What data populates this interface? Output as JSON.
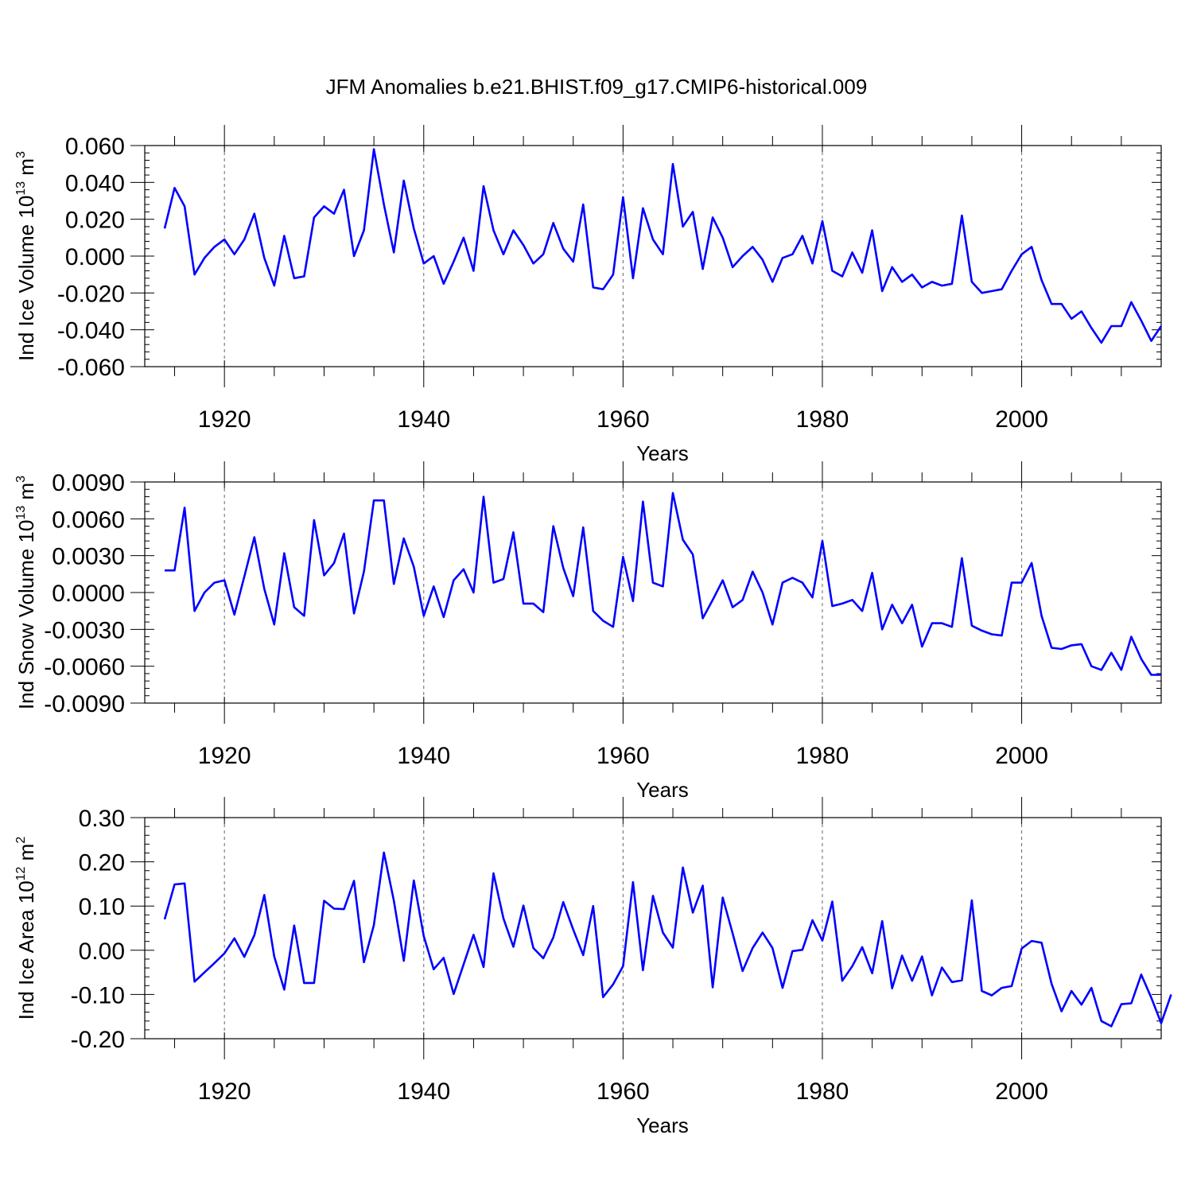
{
  "figure": {
    "title": "JFM Anomalies b.e21.BHIST.f09_g17.CMIP6-historical.009"
  },
  "colors": {
    "line": "#0000ff",
    "axis": "#000000",
    "grid": "#666666"
  },
  "chart_data": [
    {
      "type": "line",
      "id": "ice-volume",
      "xlabel": "Years",
      "ylabel_base": "Ind Ice Volume 10",
      "ylabel_exp": "13",
      "ylabel_unit": " m",
      "ylabel_unit_exp": "3",
      "xlim": [
        1914,
        2014
      ],
      "ylim": [
        -0.06,
        0.06
      ],
      "yticks": [
        -0.06,
        -0.04,
        -0.02,
        0.0,
        0.02,
        0.04,
        0.06
      ],
      "ytick_labels": [
        "-0.060",
        "-0.040",
        "-0.020",
        "0.000",
        "0.020",
        "0.040",
        "0.060"
      ],
      "xticks": [
        1920,
        1940,
        1960,
        1980,
        2000
      ],
      "xtick_labels": [
        "1920",
        "1940",
        "1960",
        "1980",
        "2000"
      ],
      "grid": "dashed vertical at major x ticks",
      "x_start": 1914,
      "values": [
        0.015,
        0.037,
        0.027,
        -0.01,
        -0.001,
        0.005,
        0.009,
        0.001,
        0.009,
        0.023,
        -0.001,
        -0.016,
        0.011,
        -0.012,
        -0.011,
        0.021,
        0.027,
        0.023,
        0.036,
        0.0,
        0.014,
        0.058,
        0.028,
        0.002,
        0.041,
        0.015,
        -0.004,
        0.0,
        -0.015,
        -0.003,
        0.01,
        -0.008,
        0.038,
        0.014,
        0.001,
        0.014,
        0.006,
        -0.004,
        0.001,
        0.018,
        0.004,
        -0.003,
        0.028,
        -0.017,
        -0.018,
        -0.01,
        0.032,
        -0.012,
        0.026,
        0.009,
        0.001,
        0.05,
        0.016,
        0.024,
        -0.007,
        0.021,
        0.01,
        -0.006,
        0.0,
        0.005,
        -0.002,
        -0.014,
        -0.001,
        0.001,
        0.011,
        -0.004,
        0.019,
        -0.008,
        -0.011,
        0.002,
        -0.009,
        0.014,
        -0.019,
        -0.006,
        -0.014,
        -0.01,
        -0.017,
        -0.014,
        -0.016,
        -0.015,
        0.022,
        -0.014,
        -0.02,
        -0.019,
        -0.018,
        -0.008,
        0.001,
        0.005,
        -0.013,
        -0.026,
        -0.026,
        -0.034,
        -0.03,
        -0.039,
        -0.047,
        -0.038,
        -0.038,
        -0.025,
        -0.035,
        -0.046,
        -0.038
      ]
    },
    {
      "type": "line",
      "id": "snow-volume",
      "xlabel": "Years",
      "ylabel_base": "Ind Snow Volume 10",
      "ylabel_exp": "13",
      "ylabel_unit": " m",
      "ylabel_unit_exp": "3",
      "xlim": [
        1914,
        2014
      ],
      "ylim": [
        -0.009,
        0.009
      ],
      "yticks": [
        -0.009,
        -0.006,
        -0.003,
        0.0,
        0.003,
        0.006,
        0.009
      ],
      "ytick_labels": [
        "-0.0090",
        "-0.0060",
        "-0.0030",
        "0.0000",
        "0.0030",
        "0.0060",
        "0.0090"
      ],
      "xticks": [
        1920,
        1940,
        1960,
        1980,
        2000
      ],
      "xtick_labels": [
        "1920",
        "1940",
        "1960",
        "1980",
        "2000"
      ],
      "grid": "dashed vertical at major x ticks",
      "x_start": 1914,
      "values": [
        0.0018,
        0.0018,
        0.0069,
        -0.0015,
        0.0,
        0.0008,
        0.001,
        -0.0018,
        0.0013,
        0.0045,
        0.0003,
        -0.0026,
        0.0032,
        -0.0012,
        -0.0019,
        0.0059,
        0.0014,
        0.0024,
        0.0048,
        -0.0017,
        0.0017,
        0.0075,
        0.0075,
        0.0007,
        0.0044,
        0.0021,
        -0.0019,
        0.0005,
        -0.002,
        0.001,
        0.0019,
        0.0,
        0.0078,
        0.0008,
        0.0011,
        0.0049,
        -0.0009,
        -0.0009,
        -0.0016,
        0.0054,
        0.002,
        -0.0003,
        0.0053,
        -0.0015,
        -0.0023,
        -0.0028,
        0.0029,
        -0.0007,
        0.0074,
        0.0008,
        0.0005,
        0.0081,
        0.0043,
        0.0031,
        -0.0021,
        -0.0006,
        0.001,
        -0.0012,
        -0.0006,
        0.0017,
        0.0,
        -0.0026,
        0.0008,
        0.0012,
        0.0008,
        -0.0004,
        0.0042,
        -0.0011,
        -0.0009,
        -0.0006,
        -0.0015,
        0.0016,
        -0.003,
        -0.001,
        -0.0025,
        -0.001,
        -0.0044,
        -0.0025,
        -0.0025,
        -0.0028,
        0.0028,
        -0.0027,
        -0.0031,
        -0.0034,
        -0.0035,
        0.0008,
        0.0008,
        0.0024,
        -0.0019,
        -0.0045,
        -0.0046,
        -0.0043,
        -0.0042,
        -0.006,
        -0.0063,
        -0.0049,
        -0.0063,
        -0.0036,
        -0.0054,
        -0.0067,
        -0.0067
      ]
    },
    {
      "type": "line",
      "id": "ice-area",
      "xlabel": "Years",
      "ylabel_base": "Ind Ice Area 10",
      "ylabel_exp": "12",
      "ylabel_unit": " m",
      "ylabel_unit_exp": "2",
      "xlim": [
        1914,
        2014
      ],
      "ylim": [
        -0.2,
        0.3
      ],
      "yticks": [
        -0.2,
        -0.1,
        0.0,
        0.1,
        0.2,
        0.3
      ],
      "ytick_labels": [
        "-0.20",
        "-0.10",
        "0.00",
        "0.10",
        "0.20",
        "0.30"
      ],
      "xticks": [
        1920,
        1940,
        1960,
        1980,
        2000
      ],
      "xtick_labels": [
        "1920",
        "1940",
        "1960",
        "1980",
        "2000"
      ],
      "grid": "dashed vertical at major x ticks",
      "x_start": 1914,
      "values": [
        0.07,
        0.149,
        0.151,
        -0.071,
        -0.05,
        -0.029,
        -0.007,
        0.027,
        -0.015,
        0.034,
        0.125,
        -0.014,
        -0.089,
        0.056,
        -0.074,
        -0.074,
        0.112,
        0.094,
        0.093,
        0.157,
        -0.027,
        0.057,
        0.221,
        0.112,
        -0.024,
        0.158,
        0.032,
        -0.043,
        -0.017,
        -0.099,
        -0.032,
        0.035,
        -0.038,
        0.174,
        0.072,
        0.008,
        0.101,
        0.005,
        -0.018,
        0.029,
        0.109,
        0.047,
        -0.011,
        0.1,
        -0.106,
        -0.077,
        -0.036,
        0.154,
        -0.045,
        0.123,
        0.04,
        0.006,
        0.187,
        0.085,
        0.146,
        -0.084,
        0.119,
        0.038,
        -0.047,
        0.005,
        0.04,
        0.005,
        -0.085,
        -0.002,
        0.001,
        0.068,
        0.022,
        0.11,
        -0.069,
        -0.036,
        0.007,
        -0.052,
        0.066,
        -0.086,
        -0.012,
        -0.069,
        -0.014,
        -0.102,
        -0.039,
        -0.072,
        -0.068,
        0.113,
        -0.092,
        -0.102,
        -0.085,
        -0.081,
        0.004,
        0.021,
        0.017,
        -0.076,
        -0.138,
        -0.092,
        -0.123,
        -0.085,
        -0.16,
        -0.172,
        -0.122,
        -0.12,
        -0.055,
        -0.107,
        -0.165,
        -0.1
      ]
    }
  ]
}
